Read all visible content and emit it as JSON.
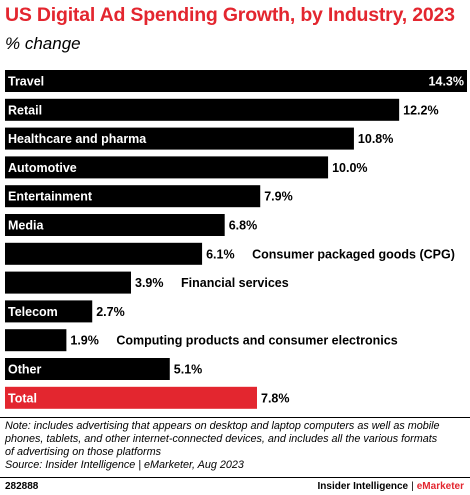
{
  "title": "US Digital Ad Spending Growth, by Industry, 2023",
  "subtitle": "% change",
  "chart_data": {
    "type": "bar",
    "orientation": "horizontal",
    "title": "US Digital Ad Spending Growth, by Industry, 2023",
    "subtitle": "% change",
    "categories": [
      "Travel",
      "Retail",
      "Healthcare and pharma",
      "Automotive",
      "Entertainment",
      "Media",
      "Consumer packaged goods (CPG)",
      "Financial services",
      "Telecom",
      "Computing products and consumer electronics",
      "Other",
      "Total"
    ],
    "values": [
      14.3,
      12.2,
      10.8,
      10.0,
      7.9,
      6.8,
      6.1,
      3.9,
      2.7,
      1.9,
      5.1,
      7.8
    ],
    "value_labels": [
      "14.3%",
      "12.2%",
      "10.8%",
      "10.0%",
      "7.9%",
      "6.8%",
      "6.1%",
      "3.9%",
      "2.7%",
      "1.9%",
      "5.1%",
      "7.8%"
    ],
    "xlim": [
      0,
      14.3
    ],
    "grid": false,
    "colors": {
      "bar": "#000000",
      "highlight": "#e3262f",
      "label_in_bar": "#ffffff",
      "label_outside": "#000000"
    },
    "highlight_category": "Total"
  },
  "note": [
    "Note: includes advertising that appears on desktop and laptop computers as well as mobile",
    "phones, tablets, and other internet-connected devices, and includes all the various formats",
    "of advertising on those platforms"
  ],
  "source": "Source: Insider Intelligence | eMarketer, Aug 2023",
  "footer": {
    "chart_id": "282888",
    "brand_left": "Insider Intelligence",
    "brand_sep": "|",
    "brand_right": "eMarketer"
  }
}
